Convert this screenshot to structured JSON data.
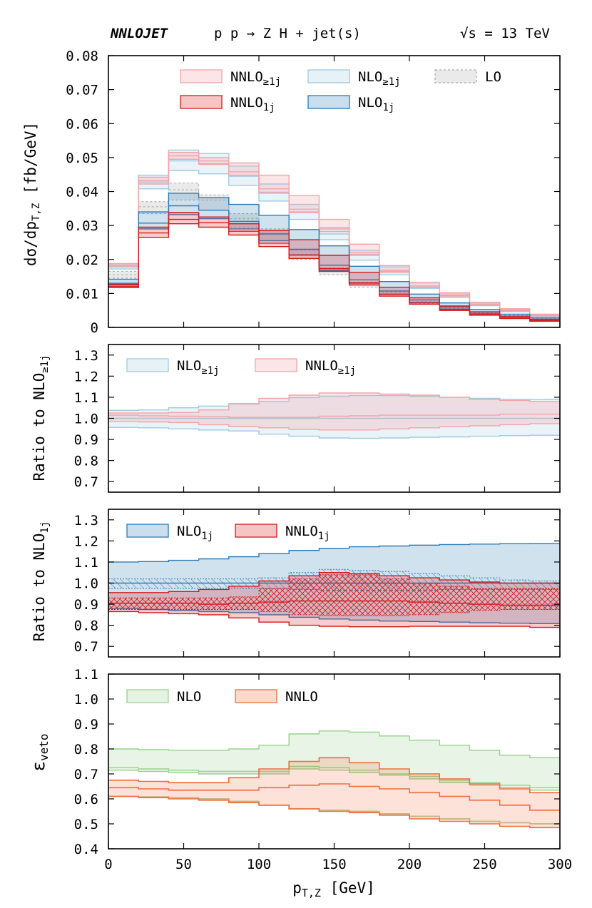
{
  "header": {
    "left": "NNLOJET",
    "center": "p p → Z H + jet(s)",
    "right_sqrt": "√s",
    "right_rest": "= 13 TeV"
  },
  "colors": {
    "nlo_incl": "#9ecae1",
    "nnlo_incl": "#f4a3a8",
    "nlo_1j": "#2c7bb6",
    "nnlo_1j": "#d7191c",
    "lo": "#a8a8a8",
    "nlo_veto": "#98d18e",
    "nnlo_veto": "#ef6c3b"
  },
  "x_axis": {
    "label_main": "p",
    "label_sub": "T,Z",
    "label_unit": "[GeV]",
    "range": [
      0,
      300
    ],
    "ticks": [
      "0",
      "50",
      "100",
      "150",
      "200",
      "250",
      "300"
    ]
  },
  "chart_data": [
    {
      "type": "area",
      "ylabel_main": "dσ/dp",
      "ylabel_sub": "T,Z",
      "ylabel_unit": "[fb/GeV]",
      "ylim": [
        0,
        0.08
      ],
      "yticks": [
        "0",
        "0.01",
        "0.02",
        "0.03",
        "0.04",
        "0.05",
        "0.06",
        "0.07",
        "0.08"
      ],
      "x_edges": [
        0,
        20,
        40,
        60,
        80,
        100,
        120,
        140,
        160,
        180,
        200,
        220,
        240,
        260,
        280,
        300
      ],
      "legend": {
        "nnlo_incl_base": "NNLO",
        "nnlo_incl_sub": "≥1j",
        "nlo_incl_base": "NLO",
        "nlo_incl_sub": "≥1j",
        "lo": "LO",
        "nnlo_1j_base": "NNLO",
        "nnlo_1j_sub": "1j",
        "nlo_1j_base": "NLO",
        "nlo_1j_sub": "1j"
      },
      "series": [
        {
          "key": "lo",
          "lo": [
            0.0145,
            0.0335,
            0.0375,
            0.0345,
            0.0295,
            0.0255,
            0.02,
            0.0155,
            0.0118,
            0.0092,
            0.007,
            0.0052,
            0.0038,
            0.003,
            0.0024
          ],
          "mid": [
            0.0155,
            0.0355,
            0.0405,
            0.0375,
            0.032,
            0.0275,
            0.0215,
            0.0165,
            0.0125,
            0.0098,
            0.0075,
            0.0057,
            0.0042,
            0.0033,
            0.0026
          ],
          "hi": [
            0.0165,
            0.037,
            0.0425,
            0.039,
            0.0335,
            0.029,
            0.0228,
            0.0175,
            0.0133,
            0.0104,
            0.0081,
            0.0062,
            0.0046,
            0.0036,
            0.0029
          ]
        },
        {
          "key": "nlo_incl",
          "lo": [
            0.0172,
            0.0408,
            0.0462,
            0.0452,
            0.0418,
            0.0372,
            0.0318,
            0.0258,
            0.0198,
            0.0155,
            0.0115,
            0.0088,
            0.0064,
            0.0046,
            0.0032
          ],
          "mid": [
            0.018,
            0.0428,
            0.049,
            0.0482,
            0.0445,
            0.0395,
            0.034,
            0.0275,
            0.0212,
            0.0165,
            0.0122,
            0.0094,
            0.0068,
            0.0049,
            0.0035
          ],
          "hi": [
            0.0187,
            0.0448,
            0.0522,
            0.0512,
            0.0475,
            0.0422,
            0.0362,
            0.0294,
            0.0227,
            0.0178,
            0.0131,
            0.0101,
            0.0073,
            0.0053,
            0.0038
          ]
        },
        {
          "key": "nnlo_incl",
          "lo": [
            0.0178,
            0.0422,
            0.0495,
            0.048,
            0.0448,
            0.0398,
            0.0338,
            0.0282,
            0.0215,
            0.0162,
            0.0118,
            0.0092,
            0.0066,
            0.0048,
            0.0034
          ],
          "mid": [
            0.0183,
            0.0432,
            0.0505,
            0.049,
            0.0458,
            0.0408,
            0.0348,
            0.029,
            0.022,
            0.0168,
            0.0122,
            0.0096,
            0.0069,
            0.0051,
            0.0036
          ],
          "hi": [
            0.0188,
            0.0442,
            0.0515,
            0.05,
            0.0484,
            0.0448,
            0.0388,
            0.0318,
            0.0245,
            0.0182,
            0.0132,
            0.0102,
            0.0074,
            0.0055,
            0.0039
          ]
        },
        {
          "key": "nlo_1j",
          "lo": [
            0.0125,
            0.029,
            0.0332,
            0.032,
            0.029,
            0.0255,
            0.0213,
            0.0168,
            0.013,
            0.0098,
            0.0073,
            0.0054,
            0.004,
            0.0029,
            0.002
          ],
          "mid": [
            0.013,
            0.0307,
            0.0358,
            0.0345,
            0.0312,
            0.0275,
            0.023,
            0.0183,
            0.014,
            0.0107,
            0.0081,
            0.006,
            0.0045,
            0.0033,
            0.0023
          ],
          "hi": [
            0.0142,
            0.034,
            0.0395,
            0.0382,
            0.0362,
            0.033,
            0.0288,
            0.024,
            0.018,
            0.0135,
            0.0098,
            0.0072,
            0.0053,
            0.0039,
            0.0028
          ]
        },
        {
          "key": "nnlo_1j",
          "lo": [
            0.0117,
            0.0265,
            0.0305,
            0.0295,
            0.0272,
            0.0238,
            0.0203,
            0.0165,
            0.0125,
            0.0092,
            0.0068,
            0.005,
            0.0036,
            0.0026,
            0.0018
          ],
          "mid": [
            0.0121,
            0.0278,
            0.0318,
            0.0308,
            0.0283,
            0.0248,
            0.0213,
            0.0173,
            0.0131,
            0.0097,
            0.0072,
            0.0053,
            0.0039,
            0.0028,
            0.002
          ],
          "hi": [
            0.0127,
            0.0295,
            0.0338,
            0.0325,
            0.0305,
            0.0285,
            0.0258,
            0.0212,
            0.0162,
            0.0118,
            0.0087,
            0.0063,
            0.0046,
            0.0033,
            0.0024
          ]
        }
      ]
    },
    {
      "type": "area",
      "ylabel_main": "Ratio to NLO",
      "ylabel_sub": "≥1j",
      "ylim": [
        0.65,
        1.35
      ],
      "yticks": [
        "0.7",
        "0.8",
        "0.9",
        "1.0",
        "1.1",
        "1.2",
        "1.3"
      ],
      "x_edges": [
        0,
        20,
        40,
        60,
        80,
        100,
        120,
        140,
        160,
        180,
        200,
        220,
        240,
        260,
        280,
        300
      ],
      "legend": {
        "nlo_incl_base": "NLO",
        "nlo_incl_sub": "≥1j",
        "nnlo_incl_base": "NNLO",
        "nnlo_incl_sub": "≥1j"
      },
      "series": [
        {
          "key": "nlo_incl",
          "lo": [
            0.957,
            0.955,
            0.95,
            0.945,
            0.94,
            0.925,
            0.915,
            0.907,
            0.905,
            0.907,
            0.91,
            0.912,
            0.915,
            0.918,
            0.92
          ],
          "mid": [
            1.0,
            1.0,
            1.0,
            1.0,
            1.0,
            1.0,
            1.0,
            1.0,
            1.0,
            1.0,
            1.0,
            1.0,
            1.0,
            1.0,
            1.0
          ],
          "hi": [
            1.038,
            1.04,
            1.05,
            1.058,
            1.068,
            1.08,
            1.098,
            1.105,
            1.108,
            1.108,
            1.105,
            1.1,
            1.095,
            1.09,
            1.09
          ]
        },
        {
          "key": "nnlo_incl",
          "lo": [
            0.985,
            0.983,
            0.98,
            0.97,
            0.96,
            0.955,
            0.948,
            0.945,
            0.945,
            0.95,
            0.955,
            0.96,
            0.965,
            0.97,
            0.975
          ],
          "mid": [
            1.015,
            1.012,
            1.01,
            1.008,
            1.005,
            1.005,
            1.005,
            1.01,
            1.012,
            1.015,
            1.015,
            1.015,
            1.015,
            1.02,
            1.02
          ],
          "hi": [
            1.025,
            1.025,
            1.028,
            1.04,
            1.07,
            1.095,
            1.11,
            1.12,
            1.12,
            1.115,
            1.11,
            1.1,
            1.09,
            1.085,
            1.08
          ]
        }
      ]
    },
    {
      "type": "area",
      "ylabel_main": "Ratio to NLO",
      "ylabel_sub": "1j",
      "ylim": [
        0.65,
        1.35
      ],
      "yticks": [
        "0.7",
        "0.8",
        "0.9",
        "1.0",
        "1.1",
        "1.2",
        "1.3"
      ],
      "x_edges": [
        0,
        20,
        40,
        60,
        80,
        100,
        120,
        140,
        160,
        180,
        200,
        220,
        240,
        260,
        280,
        300
      ],
      "legend": {
        "nlo_1j_base": "NLO",
        "nlo_1j_sub": "1j",
        "nnlo_1j_base": "NNLO",
        "nnlo_1j_sub": "1j"
      },
      "series": [
        {
          "key": "nlo_1j",
          "lo": [
            0.88,
            0.875,
            0.87,
            0.865,
            0.86,
            0.85,
            0.838,
            0.83,
            0.825,
            0.82,
            0.818,
            0.815,
            0.812,
            0.81,
            0.808
          ],
          "mid": [
            1.0,
            1.0,
            1.0,
            1.0,
            1.0,
            1.0,
            1.0,
            1.0,
            1.0,
            1.0,
            1.0,
            1.0,
            1.0,
            1.0,
            1.0
          ],
          "hi": [
            1.1,
            1.102,
            1.108,
            1.115,
            1.125,
            1.14,
            1.155,
            1.165,
            1.172,
            1.176,
            1.18,
            1.183,
            1.185,
            1.187,
            1.188
          ]
        },
        {
          "key": "nlo_1j_pdf",
          "lo": [
            0.975,
            0.975,
            0.975,
            0.975,
            0.975,
            0.975,
            0.97,
            0.965,
            0.965,
            0.965,
            0.965,
            0.97,
            0.97,
            0.97,
            0.97
          ],
          "mid": [
            1.0,
            1.0,
            1.0,
            1.0,
            1.0,
            1.0,
            1.0,
            1.0,
            1.0,
            1.0,
            1.0,
            1.0,
            1.0,
            1.0,
            1.0
          ],
          "hi": [
            1.02,
            1.02,
            1.02,
            1.02,
            1.02,
            1.025,
            1.05,
            1.065,
            1.06,
            1.055,
            1.045,
            1.035,
            1.025,
            1.015,
            1.01
          ]
        },
        {
          "key": "nnlo_1j",
          "lo": [
            0.865,
            0.86,
            0.855,
            0.85,
            0.835,
            0.815,
            0.8,
            0.795,
            0.793,
            0.793,
            0.795,
            0.795,
            0.795,
            0.795,
            0.79
          ],
          "mid": [
            0.905,
            0.905,
            0.905,
            0.9,
            0.905,
            0.91,
            0.915,
            0.915,
            0.915,
            0.915,
            0.91,
            0.905,
            0.9,
            0.895,
            0.895
          ],
          "hi": [
            0.955,
            0.955,
            0.96,
            0.97,
            0.985,
            1.01,
            1.035,
            1.05,
            1.045,
            1.035,
            1.025,
            1.015,
            1.005,
            1.0,
            1.0
          ]
        },
        {
          "key": "nnlo_1j_pdf",
          "lo": [
            0.875,
            0.875,
            0.875,
            0.875,
            0.875,
            0.865,
            0.85,
            0.845,
            0.845,
            0.845,
            0.85,
            0.86,
            0.87,
            0.875,
            0.875
          ],
          "mid": [
            0.905,
            0.905,
            0.905,
            0.9,
            0.905,
            0.91,
            0.915,
            0.915,
            0.915,
            0.915,
            0.91,
            0.905,
            0.9,
            0.895,
            0.895
          ],
          "hi": [
            0.93,
            0.93,
            0.93,
            0.93,
            0.935,
            0.975,
            1.02,
            1.04,
            1.04,
            1.02,
            1.0,
            0.985,
            0.975,
            0.975,
            0.975
          ]
        }
      ]
    },
    {
      "type": "area",
      "ylabel_main": "ε",
      "ylabel_sub": "veto",
      "ylim": [
        0.4,
        1.1
      ],
      "yticks": [
        "0.4",
        "0.5",
        "0.6",
        "0.7",
        "0.8",
        "0.9",
        "1.0",
        "1.1"
      ],
      "x_edges": [
        0,
        20,
        40,
        60,
        80,
        100,
        120,
        140,
        160,
        180,
        200,
        220,
        240,
        260,
        280,
        300
      ],
      "legend": {
        "nlo_veto": "NLO",
        "nnlo_veto": "NNLO"
      },
      "series": [
        {
          "key": "nlo_veto",
          "lo": [
            0.715,
            0.71,
            0.705,
            0.7,
            0.7,
            0.7,
            0.72,
            0.715,
            0.705,
            0.695,
            0.68,
            0.665,
            0.655,
            0.645,
            0.635
          ],
          "mid": [
            0.725,
            0.72,
            0.715,
            0.71,
            0.71,
            0.71,
            0.73,
            0.725,
            0.715,
            0.7,
            0.69,
            0.675,
            0.665,
            0.655,
            0.645
          ],
          "hi": [
            0.8,
            0.797,
            0.795,
            0.795,
            0.8,
            0.815,
            0.86,
            0.872,
            0.867,
            0.852,
            0.835,
            0.815,
            0.795,
            0.775,
            0.765
          ]
        },
        {
          "key": "nlo_veto_low",
          "lo": [
            0.61,
            0.608,
            0.605,
            0.6,
            0.59,
            0.575,
            0.56,
            0.555,
            0.55,
            0.54,
            0.53,
            0.52,
            0.51,
            0.505,
            0.5
          ],
          "mid": [
            0.61,
            0.608,
            0.605,
            0.6,
            0.59,
            0.575,
            0.56,
            0.555,
            0.55,
            0.54,
            0.53,
            0.52,
            0.51,
            0.505,
            0.5
          ],
          "hi": [
            0.61,
            0.608,
            0.605,
            0.6,
            0.59,
            0.575,
            0.56,
            0.555,
            0.55,
            0.54,
            0.53,
            0.52,
            0.51,
            0.505,
            0.5
          ]
        },
        {
          "key": "nnlo_veto",
          "lo": [
            0.61,
            0.605,
            0.6,
            0.595,
            0.585,
            0.575,
            0.56,
            0.55,
            0.545,
            0.535,
            0.52,
            0.51,
            0.5,
            0.49,
            0.485
          ],
          "mid": [
            0.645,
            0.64,
            0.635,
            0.635,
            0.635,
            0.645,
            0.655,
            0.66,
            0.65,
            0.64,
            0.625,
            0.61,
            0.595,
            0.575,
            0.555
          ],
          "hi": [
            0.675,
            0.67,
            0.665,
            0.665,
            0.685,
            0.72,
            0.75,
            0.765,
            0.745,
            0.72,
            0.7,
            0.68,
            0.66,
            0.64,
            0.625
          ]
        }
      ]
    }
  ]
}
